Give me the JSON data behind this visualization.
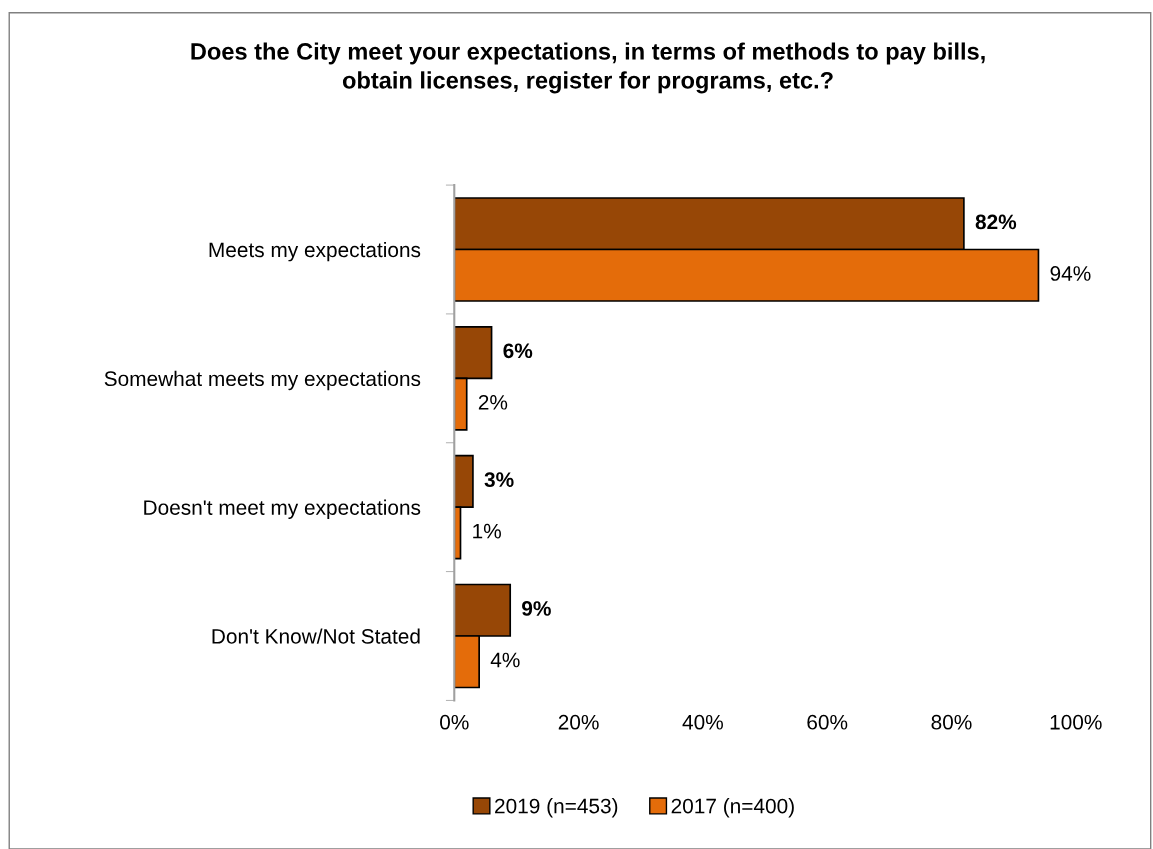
{
  "chart_data": {
    "type": "bar",
    "orientation": "horizontal",
    "title": "Does the City meet your expectations, in terms of methods to pay bills,\nobtain licenses, register for programs, etc.?",
    "categories": [
      "Meets my expectations",
      "Somewhat meets my expectations",
      "Doesn't meet my expectations",
      "Don't Know/Not Stated"
    ],
    "series": [
      {
        "name": "2019 (n=453)",
        "color": "#974706",
        "values": [
          82,
          6,
          3,
          9
        ],
        "value_labels": [
          "82%",
          "6%",
          "3%",
          "9%"
        ]
      },
      {
        "name": "2017 (n=400)",
        "color": "#e46c0a",
        "values": [
          94,
          2,
          1,
          4
        ],
        "value_labels": [
          "94%",
          "2%",
          "1%",
          "4%"
        ]
      }
    ],
    "xlim": [
      0,
      100
    ],
    "xticks": [
      {
        "value": 0,
        "label": "0%"
      },
      {
        "value": 20,
        "label": "20%"
      },
      {
        "value": 40,
        "label": "40%"
      },
      {
        "value": 60,
        "label": "60%"
      },
      {
        "value": 80,
        "label": "80%"
      },
      {
        "value": 100,
        "label": "100%"
      }
    ],
    "grid": false,
    "legend": "bottom"
  }
}
